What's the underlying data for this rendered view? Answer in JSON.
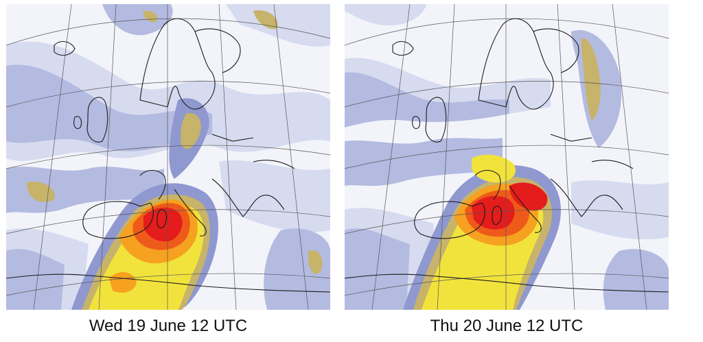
{
  "panels": [
    {
      "caption": "Wed 19 June 12 UTC"
    },
    {
      "caption": "Thu 20 June 12 UTC"
    }
  ],
  "colors": {
    "background": "#ffffff",
    "light_lavender": "#d7dbef",
    "lavender": "#b4bbe1",
    "periwinkle": "#8f98cf",
    "khaki": "#c7b36a",
    "yellow": "#f2e33c",
    "orange": "#f6a11f",
    "red_orange": "#ee5a1a",
    "red": "#e51c1c",
    "coastline": "#1a1a1a",
    "graticule": "#555555"
  }
}
